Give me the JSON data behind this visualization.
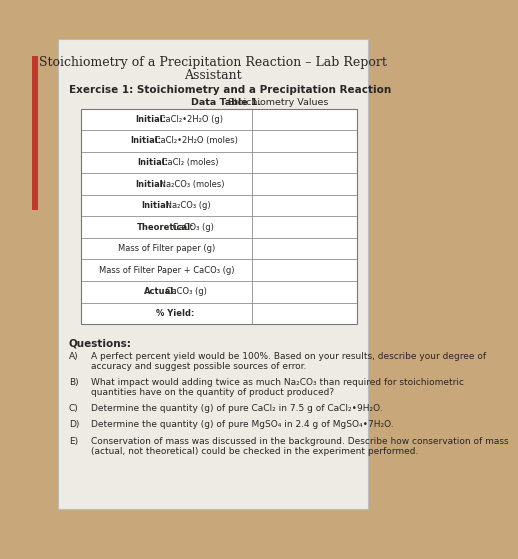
{
  "title_line1": "Stoichiometry of a Precipitation Reaction – Lab Report",
  "title_line2": "Assistant",
  "exercise_title": "Exercise 1: Stoichiometry and a Precipitation Reaction",
  "table_title_bold": "Data Table 1.",
  "table_title_normal": " Stoichiometry Values",
  "table_rows": [
    "Initial: CaCl₂•2H₂O (g)",
    "Initial: CaCl₂•2H₂O (moles)",
    "Initial: CaCl₂ (moles)",
    "Initial: Na₂CO₃ (moles)",
    "Initial: Na₂CO₃ (g)",
    "Theoretical: CaCO₃ (g)",
    "Mass of Filter paper (g)",
    "Mass of Filter Paper + CaCO₃ (g)",
    "Actual: CaCO₃ (g)",
    "% Yield:"
  ],
  "bold_prefixes": [
    "Initial:",
    "Initial:",
    "Initial:",
    "Initial:",
    "Initial:",
    "Theoretical:",
    "",
    "",
    "Actual:",
    "% Yield:"
  ],
  "questions_label": "Questions:",
  "questions": [
    {
      "letter": "A)",
      "lines": [
        "A perfect percent yield would be 100%. Based on your results, describe your degree of",
        "accuracy and suggest possible sources of error."
      ]
    },
    {
      "letter": "B)",
      "lines": [
        "What impact would adding twice as much Na₂CO₃ than required for stoichiometric",
        "quantities have on the quantity of product produced?"
      ]
    },
    {
      "letter": "C)",
      "lines": [
        "Determine the quantity (g) of pure CaCl₂ in 7.5 g of CaCl₂•9H₂O."
      ]
    },
    {
      "letter": "D)",
      "lines": [
        "Determine the quantity (g) of pure MgSO₄ in 2.4 g of MgSO₄•7H₂O."
      ]
    },
    {
      "letter": "E)",
      "lines": [
        "Conservation of mass was discussed in the background. Describe how conservation of mass",
        "(actual, not theoretical) could be checked in the experiment performed."
      ]
    }
  ],
  "desk_color": "#c8a87a",
  "paper_color": "#eeebe4",
  "text_color": "#2a2626",
  "border_color": "#777777",
  "red_bar_color": "#c0392b"
}
